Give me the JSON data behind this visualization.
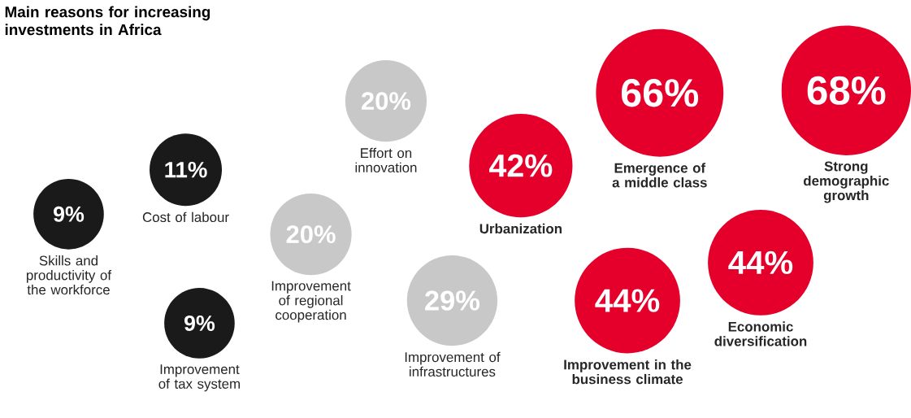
{
  "chart_data": {
    "type": "other",
    "title": "Main reasons for increasing investments in Africa",
    "categories": [
      "Skills and productivity of the workforce",
      "Cost of labour",
      "Improvement of tax system",
      "Improvement of regional cooperation",
      "Effort on innovation",
      "Improvement of infrastructures",
      "Urbanization",
      "Improvement in the business climate",
      "Emergence of a middle class",
      "Economic diversification",
      "Strong demographic growth"
    ],
    "values": [
      9,
      11,
      9,
      20,
      20,
      29,
      42,
      44,
      66,
      44,
      68
    ],
    "value_labels": [
      "9%",
      "11%",
      "9%",
      "20%",
      "20%",
      "29%",
      "42%",
      "44%",
      "66%",
      "44%",
      "68%"
    ],
    "colors": [
      "#1a1a1a",
      "#1a1a1a",
      "#1a1a1a",
      "#c8c8c8",
      "#c8c8c8",
      "#c8c8c8",
      "#e4002b",
      "#e4002b",
      "#e4002b",
      "#e4002b",
      "#e4002b"
    ]
  }
}
